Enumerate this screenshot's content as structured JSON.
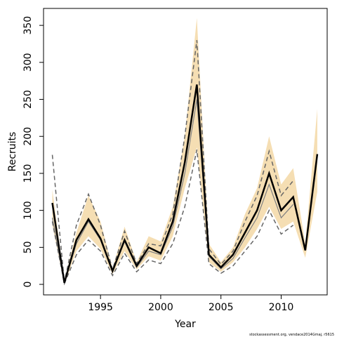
{
  "chart_data": {
    "type": "line",
    "xlabel": "Year",
    "ylabel": "Recruits",
    "footnote": "stockassessment.org, vendace2014Gmaj, r5615",
    "x": [
      1991,
      1992,
      1993,
      1994,
      1995,
      1996,
      1997,
      1998,
      1999,
      2000,
      2001,
      2002,
      2003,
      2004,
      2005,
      2006,
      2007,
      2008,
      2009,
      2010,
      2011,
      2012,
      2013
    ],
    "band": {
      "color": "#f5deb3",
      "upper": [
        128,
        5,
        70,
        120,
        85,
        22,
        78,
        30,
        65,
        58,
        105,
        200,
        360,
        55,
        30,
        50,
        95,
        130,
        200,
        135,
        157,
        55,
        237
      ],
      "lower": [
        80,
        0,
        45,
        65,
        48,
        14,
        45,
        20,
        38,
        32,
        65,
        130,
        185,
        30,
        17,
        30,
        50,
        75,
        105,
        75,
        85,
        36,
        125
      ]
    },
    "series": [
      {
        "color": "#808080",
        "style": "solid",
        "width": 1.2,
        "values": [
          90,
          2,
          55,
          85,
          60,
          17,
          58,
          23,
          45,
          40,
          78,
          150,
          250,
          38,
          21,
          35,
          63,
          90,
          135,
          90,
          108,
          null,
          null
        ]
      },
      {
        "color": "#666666",
        "style": "dashed",
        "width": 1.5,
        "values": [
          175,
          3,
          80,
          122,
          80,
          20,
          72,
          28,
          55,
          52,
          95,
          200,
          330,
          48,
          27,
          45,
          85,
          120,
          180,
          120,
          140,
          null,
          null
        ]
      },
      {
        "color": "#666666",
        "style": "dashed",
        "width": 1.5,
        "values": [
          85,
          1,
          40,
          60,
          45,
          12,
          42,
          17,
          33,
          28,
          55,
          105,
          182,
          28,
          15,
          25,
          45,
          65,
          100,
          68,
          80,
          null,
          null
        ]
      },
      {
        "color": "#000000",
        "style": "solid",
        "width": 2.5,
        "values": [
          110,
          2,
          60,
          88,
          62,
          18,
          60,
          25,
          50,
          42,
          85,
          165,
          270,
          40,
          23,
          40,
          70,
          100,
          150,
          100,
          118,
          46,
          176
        ]
      }
    ],
    "xlim": [
      1990.27,
      2013.82
    ],
    "ylim": [
      -14.2,
      372.9
    ],
    "xticks": [
      1995,
      2000,
      2005,
      2010
    ],
    "yticks": [
      0,
      50,
      100,
      150,
      200,
      250,
      300,
      350
    ]
  }
}
